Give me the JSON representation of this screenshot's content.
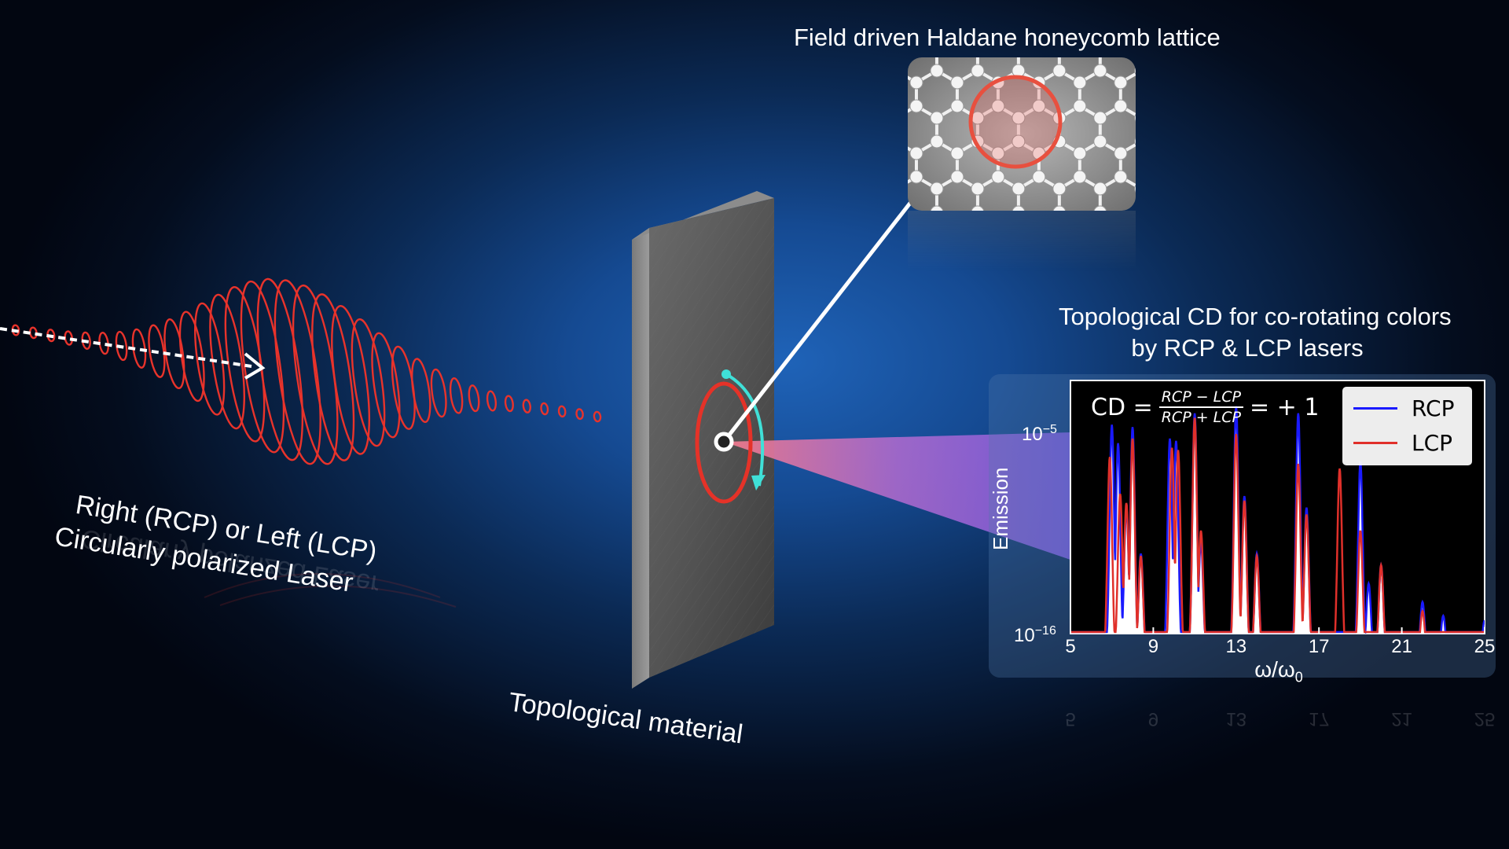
{
  "texts": {
    "haldane_title": "Field driven Haldane honeycomb lattice",
    "cd_title_line1": "Topological CD for co-rotating colors",
    "cd_title_line2": "by RCP & LCP lasers",
    "laser_line1": "Right (RCP) or Left (LCP)",
    "laser_line2": "Circularly  polarized  Laser",
    "material_label": "Topological material"
  },
  "colors": {
    "rcp": "#1a1aff",
    "lcp": "#e0302a",
    "laser": "#e8332b",
    "rotation_arrow": "#3fe0d8",
    "background_center": "#1f63b8"
  },
  "icons": [
    "honeycomb-lattice-icon",
    "rotation-arrow-icon",
    "beam-arrow-icon"
  ],
  "chart_data": {
    "type": "line",
    "title": "",
    "formula": {
      "lhs": "CD =",
      "numerator": "RCP − LCP",
      "denominator": "RCP + LCP",
      "rhs": "= + 1"
    },
    "xlabel": "ω/ω",
    "xlabel_sub": "0",
    "ylabel": "Emission",
    "xlim": [
      5,
      25
    ],
    "xticks": [
      "5",
      "9",
      "13",
      "17",
      "21",
      "25"
    ],
    "y_scale": "log",
    "ylim_exponent": [
      -16,
      -5
    ],
    "y_tick_base": "10",
    "y_ticks_exp": [
      "−5",
      "−16"
    ],
    "legend_position": "top-right",
    "harmonics": [
      7,
      8,
      10,
      11,
      13,
      16,
      19,
      20,
      22,
      23,
      25
    ],
    "series": [
      {
        "name": "RCP",
        "peaks": [
          {
            "x": 7.0,
            "y": -5.9
          },
          {
            "x": 7.3,
            "y": -6.7
          },
          {
            "x": 7.7,
            "y": -9.5
          },
          {
            "x": 8.0,
            "y": -6.0
          },
          {
            "x": 8.4,
            "y": -11.5
          },
          {
            "x": 9.8,
            "y": -6.5
          },
          {
            "x": 10.1,
            "y": -6.6
          },
          {
            "x": 11.0,
            "y": -5.4
          },
          {
            "x": 11.3,
            "y": -11.0
          },
          {
            "x": 13.0,
            "y": -5.1
          },
          {
            "x": 13.4,
            "y": -9.0
          },
          {
            "x": 14.0,
            "y": -11.5
          },
          {
            "x": 16.0,
            "y": -5.4
          },
          {
            "x": 16.4,
            "y": -9.5
          },
          {
            "x": 19.0,
            "y": -7.5
          },
          {
            "x": 19.4,
            "y": -12.8
          },
          {
            "x": 20.0,
            "y": -12.0
          },
          {
            "x": 22.0,
            "y": -13.6
          },
          {
            "x": 23.0,
            "y": -14.2
          },
          {
            "x": 25.0,
            "y": -14.4
          }
        ]
      },
      {
        "name": "LCP",
        "peaks": [
          {
            "x": 6.9,
            "y": -7.3
          },
          {
            "x": 7.4,
            "y": -8.9
          },
          {
            "x": 7.7,
            "y": -9.3
          },
          {
            "x": 8.0,
            "y": -6.5
          },
          {
            "x": 8.4,
            "y": -11.6
          },
          {
            "x": 9.9,
            "y": -6.9
          },
          {
            "x": 10.2,
            "y": -7.0
          },
          {
            "x": 11.0,
            "y": -5.6
          },
          {
            "x": 11.3,
            "y": -10.5
          },
          {
            "x": 13.0,
            "y": -6.3
          },
          {
            "x": 13.4,
            "y": -9.2
          },
          {
            "x": 14.0,
            "y": -11.6
          },
          {
            "x": 16.0,
            "y": -7.6
          },
          {
            "x": 16.4,
            "y": -9.8
          },
          {
            "x": 18.0,
            "y": -7.8
          },
          {
            "x": 19.0,
            "y": -10.5
          },
          {
            "x": 20.0,
            "y": -12.0
          },
          {
            "x": 22.0,
            "y": -14.0
          },
          {
            "x": 23.0,
            "y": -15.0
          },
          {
            "x": 25.0,
            "y": -15.5
          }
        ]
      }
    ]
  }
}
